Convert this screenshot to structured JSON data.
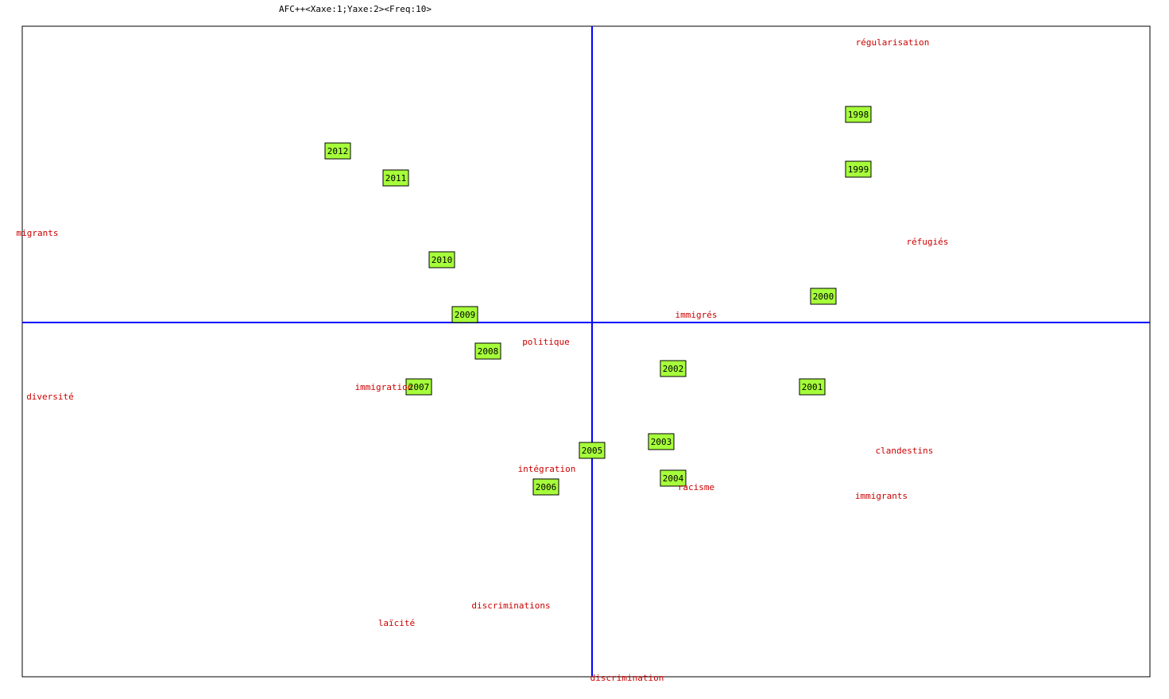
{
  "chart_data": {
    "type": "scatter",
    "title": "AFC++<Xaxe:1;Yaxe:2><Freq:10>",
    "xlim": [
      -7.17,
      7.02
    ],
    "ylim": [
      -4.46,
      3.73
    ],
    "axis_color": "#0000ff",
    "series": [
      {
        "marker": "box",
        "color": "#a6ff3a",
        "labels": [
          "1998",
          "1999",
          "2000",
          "2001",
          "2002",
          "2003",
          "2004",
          "2005",
          "2006",
          "2007",
          "2008",
          "2009",
          "2010",
          "2011",
          "2012"
        ],
        "x": [
          3.35,
          3.35,
          2.91,
          2.77,
          1.02,
          0.87,
          1.02,
          0.0,
          -0.58,
          -2.18,
          -1.31,
          -1.6,
          -1.89,
          -2.47,
          -3.2
        ],
        "y": [
          2.62,
          1.93,
          0.33,
          -0.81,
          -0.58,
          -1.5,
          -1.96,
          -1.61,
          -2.07,
          -0.81,
          -0.36,
          0.1,
          0.79,
          1.82,
          2.16
        ]
      },
      {
        "marker": "text",
        "color": "#cc0000",
        "labels": [
          "régularisation",
          "réfugiés",
          "migrants",
          "immigrés",
          "politique",
          "diversité",
          "immigration",
          "clandestins",
          "intégration",
          "racisme",
          "immigrants",
          "discriminations",
          "laïcité",
          "discrimination"
        ],
        "x": [
          3.78,
          4.22,
          -6.98,
          1.31,
          -0.58,
          -6.82,
          -2.62,
          3.93,
          -0.57,
          1.31,
          3.64,
          -1.02,
          -2.46,
          0.44
        ],
        "y": [
          3.52,
          1.01,
          1.12,
          0.09,
          -0.25,
          -0.94,
          -0.82,
          -1.62,
          -1.85,
          -2.08,
          -2.19,
          -3.57,
          -3.79,
          -4.48
        ]
      }
    ]
  }
}
